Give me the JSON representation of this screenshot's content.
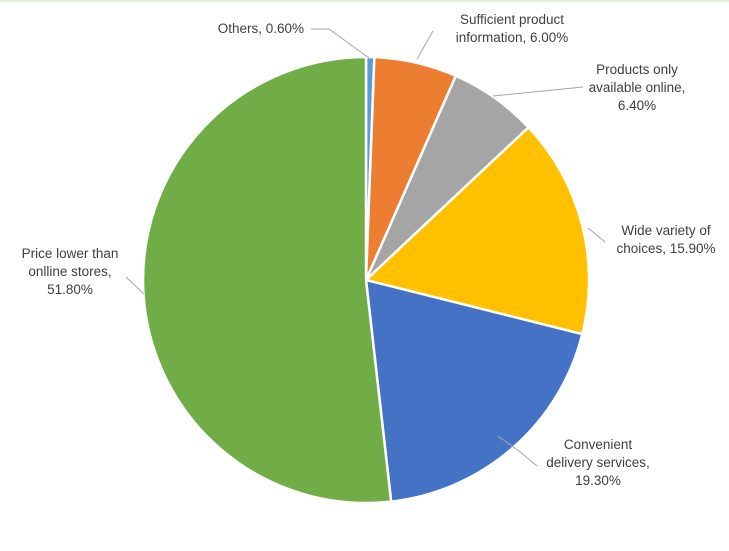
{
  "chart_data": {
    "type": "pie",
    "title": "",
    "start_angle_deg": 0,
    "direction": "clockwise",
    "slices": [
      {
        "label": "Others",
        "value": 0.6,
        "display": "0.60%",
        "color": "#5b9bd5",
        "label_lines": [
          "Others, 0.60%"
        ]
      },
      {
        "label": "Sufficient product information",
        "value": 6.0,
        "display": "6.00%",
        "color": "#ed7d31",
        "label_lines": [
          "Sufficient product",
          "information, 6.00%"
        ]
      },
      {
        "label": "Products only available online",
        "value": 6.4,
        "display": "6.40%",
        "color": "#a5a5a5",
        "label_lines": [
          "Products only",
          "available online,",
          "6.40%"
        ]
      },
      {
        "label": "Wide variety of choices",
        "value": 15.9,
        "display": "15.90%",
        "color": "#ffc000",
        "label_lines": [
          "Wide variety of",
          "choices, 15.90%"
        ]
      },
      {
        "label": "Convenient delivery services",
        "value": 19.3,
        "display": "19.30%",
        "color": "#4472c4",
        "label_lines": [
          "Convenient",
          "delivery services,",
          "19.30%"
        ]
      },
      {
        "label": "Price lower than onlline stores",
        "value": 51.8,
        "display": "51.80%",
        "color": "#70ad47",
        "label_lines": [
          "Price lower than",
          "onlline stores,",
          "51.80%"
        ]
      }
    ]
  }
}
